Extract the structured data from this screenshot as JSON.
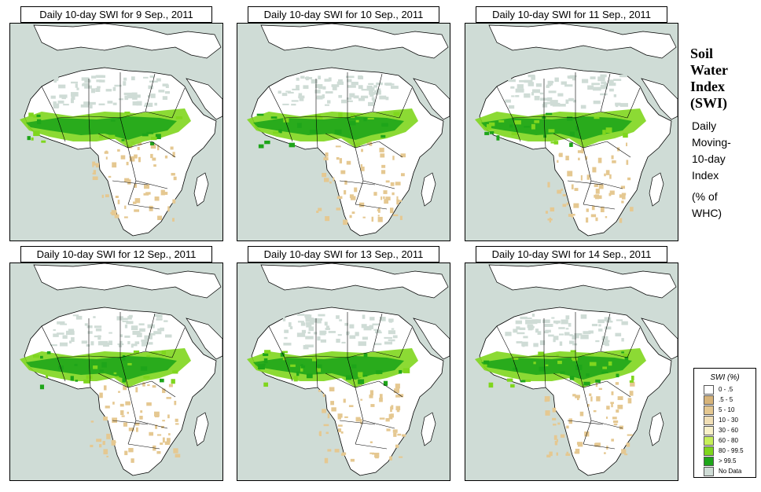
{
  "panels": [
    {
      "title": "Daily 10-day SWI for  9 Sep., 2011",
      "wet_index": 0
    },
    {
      "title": "Daily 10-day SWI for  10 Sep., 2011",
      "wet_index": 1
    },
    {
      "title": "Daily 10-day SWI for  11 Sep., 2011",
      "wet_index": 2
    },
    {
      "title": "Daily 10-day SWI for  12 Sep., 2011",
      "wet_index": 3
    },
    {
      "title": "Daily 10-day SWI for  13 Sep., 2011",
      "wet_index": 4
    },
    {
      "title": "Daily 10-day SWI for  14 Sep., 2011",
      "wet_index": 5
    }
  ],
  "side": {
    "title_line1": "Soil",
    "title_line2": "Water",
    "title_line3": "Index",
    "title_line4": "(SWI)",
    "sub_line1": "Daily",
    "sub_line2": "Moving-",
    "sub_line3": "10-day",
    "sub_line4": "Index",
    "note_line1": "(% of",
    "note_line2": " WHC)"
  },
  "legend": {
    "title": "SWI (%)",
    "items": [
      {
        "label": "0 - .5",
        "color": "#ffffff"
      },
      {
        "label": ".5 - 5",
        "color": "#d7b47a"
      },
      {
        "label": "5 - 10",
        "color": "#e5c891"
      },
      {
        "label": "10 - 30",
        "color": "#f1dfb6"
      },
      {
        "label": "30 - 60",
        "color": "#f8f0c8"
      },
      {
        "label": "60 - 80",
        "color": "#c6ef5a"
      },
      {
        "label": "80 - 99.5",
        "color": "#7fd61e"
      },
      {
        "label": "> 99.5",
        "color": "#1ea51a"
      },
      {
        "label": "No Data",
        "color": "#cfdcd6"
      }
    ]
  },
  "colors": {
    "ocean": "#cfdcd6",
    "land": "#ffffff",
    "sahara_nodata": "#cfdcd6",
    "dry_tan": "#e5c891",
    "wet_light": "#7fd61e",
    "wet_dark": "#1ea51a",
    "border": "#000000"
  }
}
